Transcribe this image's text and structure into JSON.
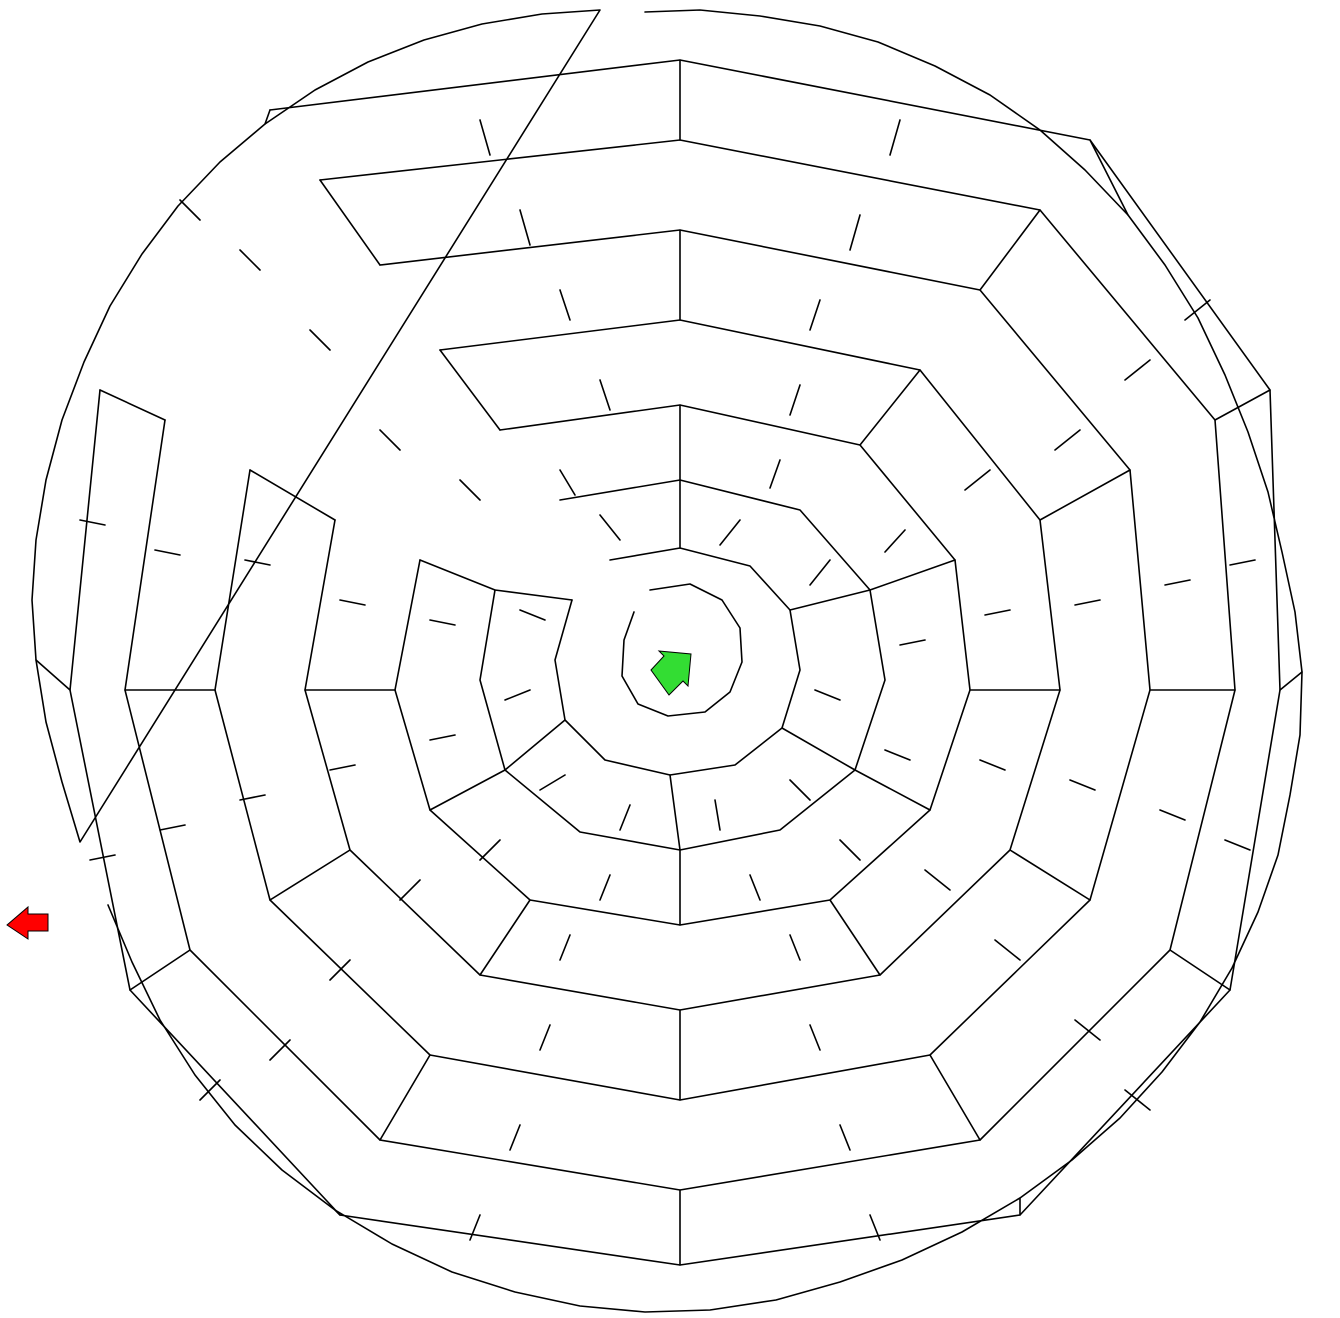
{
  "maze": {
    "shape": "circular",
    "wall_color": "#000000",
    "background_color": "#ffffff",
    "start_marker": {
      "name": "start-arrow",
      "color": "#33dd33",
      "location": "center",
      "direction": "up-right"
    },
    "end_marker": {
      "name": "exit-arrow",
      "color": "#ff0000",
      "location": "left edge",
      "direction": "left"
    }
  }
}
